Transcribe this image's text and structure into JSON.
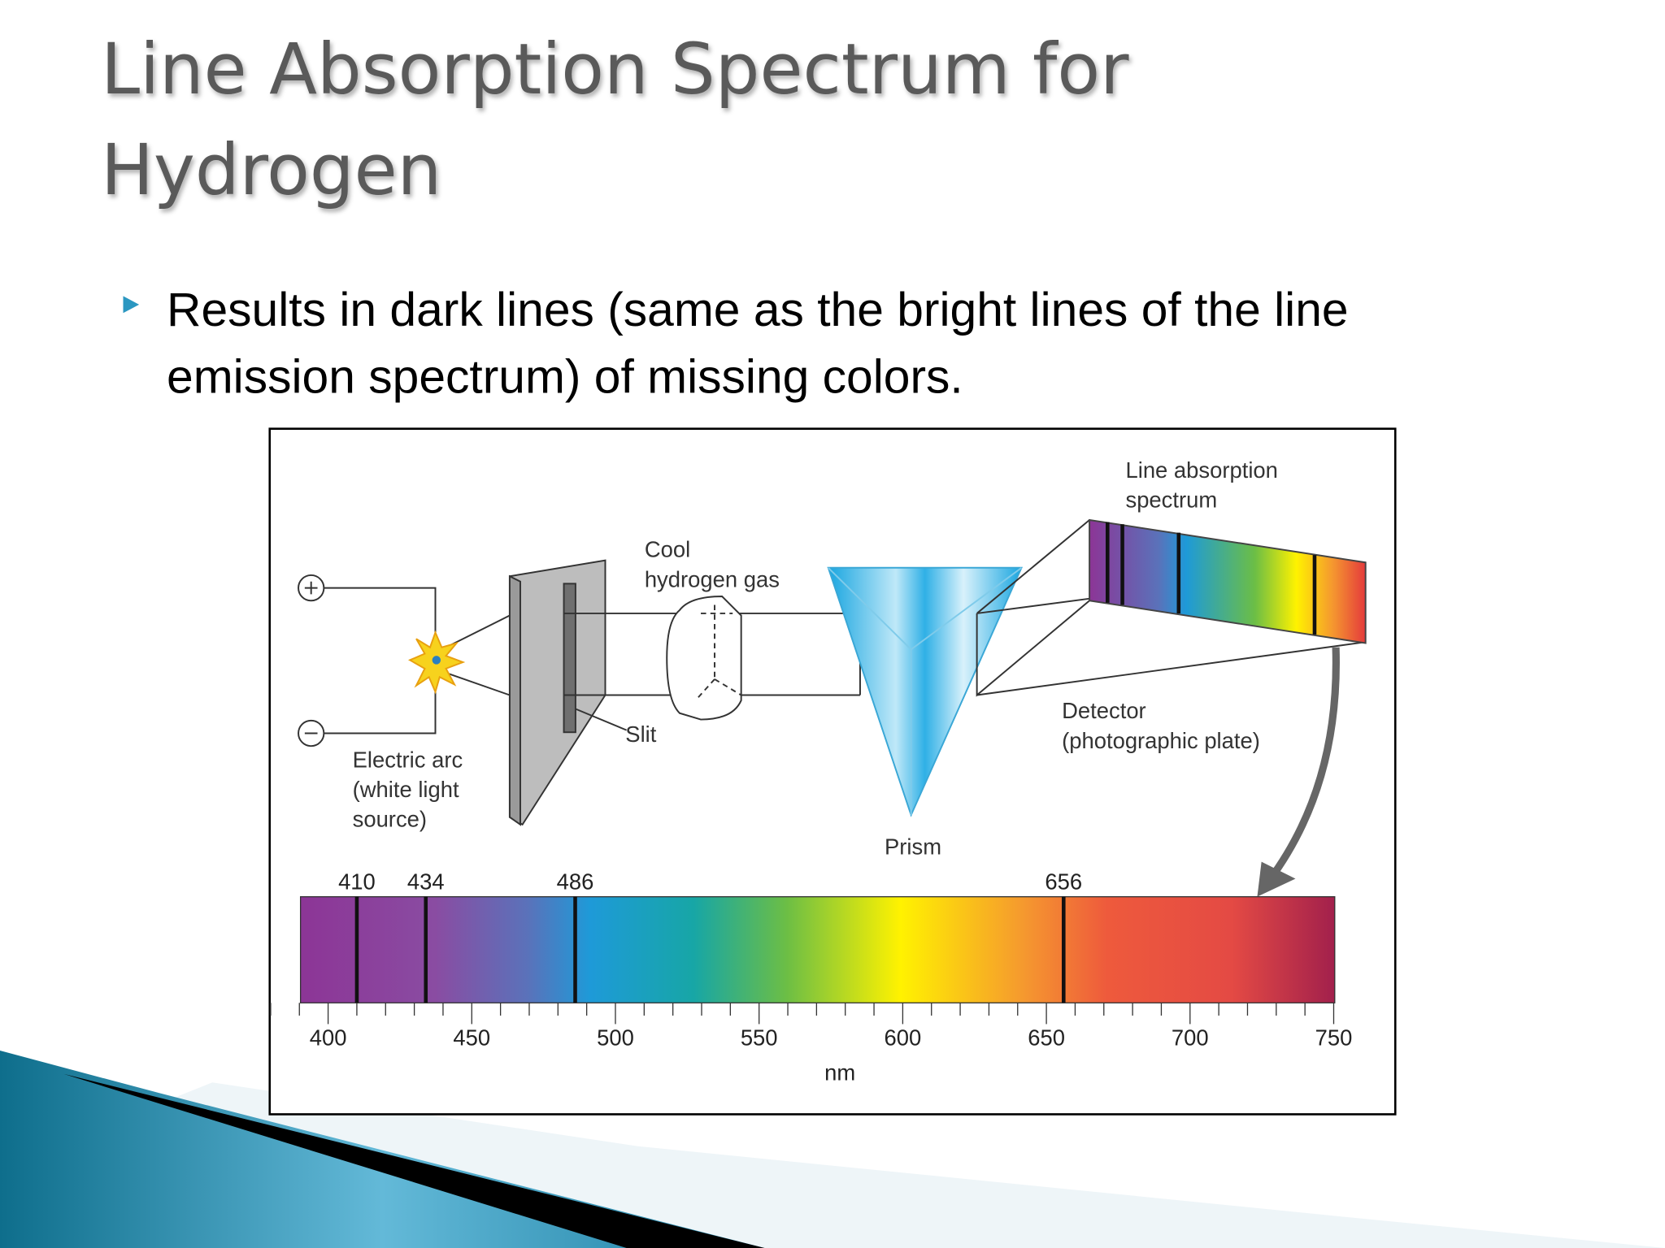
{
  "header": {
    "title": [
      "Line Absorption Spectrum for",
      "Hydrogen"
    ]
  },
  "bullet": {
    "lines": [
      "Results in dark lines (same as the bright lines of the line",
      "emission spectrum) of missing colors."
    ]
  },
  "figure": {
    "labels": {
      "absorption": [
        "Line absorption",
        "spectrum"
      ],
      "gas": [
        "Cool",
        "hydrogen gas"
      ],
      "slit": "Slit",
      "arc": [
        "Electric arc",
        "(white light",
        "source)"
      ],
      "detector": [
        "Detector",
        "(photographic plate)"
      ],
      "prism": "Prism"
    },
    "spectrum": {
      "lines": [
        410,
        434,
        486,
        656
      ],
      "ticks": [
        400,
        450,
        500,
        550,
        600,
        650,
        700,
        750
      ],
      "unit": "nm"
    }
  }
}
